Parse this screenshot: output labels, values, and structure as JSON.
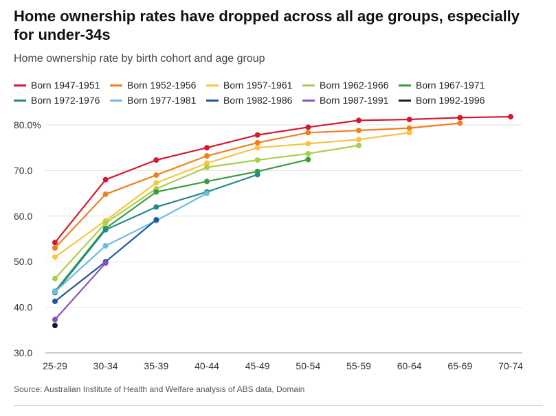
{
  "header": {
    "title": "Home ownership rates have dropped across all age groups, especially for under-34s",
    "subtitle": "Home ownership rate by birth cohort and age group"
  },
  "footer": {
    "source": "Source: Australian Institute of Health and Welfare analysis of ABS data, Domain"
  },
  "chart_data": {
    "type": "line",
    "categories": [
      "25-29",
      "30-34",
      "35-39",
      "40-44",
      "45-49",
      "50-54",
      "55-59",
      "60-64",
      "65-69",
      "70-74"
    ],
    "ylim": [
      30,
      82
    ],
    "yticks": [
      "80.0%",
      "70.0",
      "60.0",
      "50.0",
      "40.0",
      "30.0"
    ],
    "ytick_values": [
      80,
      70,
      60,
      50,
      40,
      30
    ],
    "grid": true,
    "legend_position": "top",
    "series": [
      {
        "name": "Born 1947-1951",
        "color": "#d7172f",
        "values": [
          54.2,
          68.0,
          72.3,
          75.0,
          77.8,
          79.5,
          81.0,
          81.2,
          81.6,
          81.8
        ]
      },
      {
        "name": "Born 1952-1956",
        "color": "#f07f1d",
        "values": [
          53.0,
          64.8,
          69.0,
          73.2,
          76.1,
          78.3,
          78.8,
          79.3,
          80.4,
          null
        ]
      },
      {
        "name": "Born 1957-1961",
        "color": "#f9c343",
        "values": [
          51.0,
          59.0,
          67.3,
          71.6,
          75.0,
          75.9,
          76.8,
          78.3,
          null,
          null
        ]
      },
      {
        "name": "Born 1962-1966",
        "color": "#a7cf4a",
        "values": [
          46.3,
          58.5,
          66.0,
          70.7,
          72.3,
          73.7,
          75.5,
          null,
          null,
          null
        ]
      },
      {
        "name": "Born 1967-1971",
        "color": "#3b9c3f",
        "values": [
          43.5,
          57.3,
          65.3,
          67.6,
          69.8,
          72.4,
          null,
          null,
          null,
          null
        ]
      },
      {
        "name": "Born 1972-1976",
        "color": "#228a87",
        "values": [
          43.2,
          57.0,
          62.0,
          65.3,
          69.1,
          null,
          null,
          null,
          null,
          null
        ]
      },
      {
        "name": "Born 1977-1981",
        "color": "#6bbbe6",
        "values": [
          43.4,
          53.5,
          59.0,
          65.0,
          null,
          null,
          null,
          null,
          null,
          null
        ]
      },
      {
        "name": "Born 1982-1986",
        "color": "#1d56a4",
        "values": [
          41.3,
          50.0,
          59.2,
          null,
          null,
          null,
          null,
          null,
          null,
          null
        ]
      },
      {
        "name": "Born 1987-1991",
        "color": "#8e4fbd",
        "values": [
          37.3,
          49.7,
          null,
          null,
          null,
          null,
          null,
          null,
          null,
          null
        ]
      },
      {
        "name": "Born 1992-1996",
        "color": "#1a1a2e",
        "values": [
          36.0,
          null,
          null,
          null,
          null,
          null,
          null,
          null,
          null,
          null
        ]
      }
    ]
  }
}
